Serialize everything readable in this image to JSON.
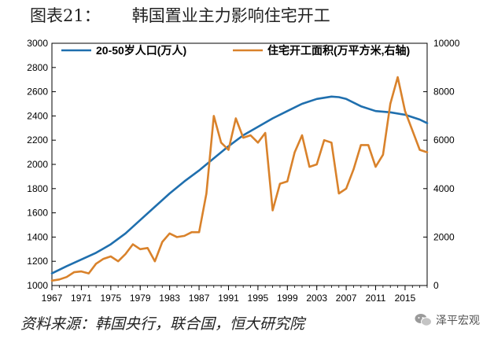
{
  "header": {
    "title": "图表21：      韩国置业主力影响住宅开工"
  },
  "footer": {
    "source": "资料来源：韩国央行，联合国，恒大研究院",
    "watermark": "泽平宏观",
    "watermark_icon": "wechat-icon"
  },
  "colors": {
    "population": "#1f6fae",
    "construction": "#d9822b",
    "background": "#ffffff"
  },
  "chart_data": {
    "type": "line",
    "title": "",
    "xlabel": "",
    "ylabel": "",
    "xlim": [
      1967,
      2018
    ],
    "ylim": [
      1000,
      3000
    ],
    "y2lim": [
      0,
      10000
    ],
    "x_ticks": [
      1967,
      1971,
      1975,
      1979,
      1983,
      1987,
      1991,
      1995,
      1999,
      2003,
      2007,
      2011,
      2015
    ],
    "y_ticks": [
      1000,
      1200,
      1400,
      1600,
      1800,
      2000,
      2200,
      2400,
      2600,
      2800,
      3000
    ],
    "y2_ticks": [
      0,
      2000,
      4000,
      6000,
      8000,
      10000
    ],
    "legend_position": "top",
    "grid": false,
    "series": [
      {
        "name": "20-50岁人口(万人)",
        "axis": "left",
        "x": [
          1967,
          1969,
          1971,
          1973,
          1975,
          1977,
          1979,
          1981,
          1983,
          1985,
          1987,
          1989,
          1991,
          1993,
          1995,
          1997,
          1999,
          2001,
          2003,
          2005,
          2006,
          2007,
          2009,
          2011,
          2013,
          2015,
          2017,
          2018
        ],
        "y": [
          1100,
          1160,
          1215,
          1270,
          1340,
          1430,
          1540,
          1650,
          1760,
          1860,
          1950,
          2050,
          2150,
          2240,
          2310,
          2380,
          2440,
          2500,
          2540,
          2560,
          2555,
          2540,
          2480,
          2440,
          2430,
          2410,
          2370,
          2340
        ]
      },
      {
        "name": "住宅开工面积(万平方米,右轴)",
        "axis": "right",
        "x": [
          1967,
          1968,
          1969,
          1970,
          1971,
          1972,
          1973,
          1974,
          1975,
          1976,
          1977,
          1978,
          1979,
          1980,
          1981,
          1982,
          1983,
          1984,
          1985,
          1986,
          1987,
          1988,
          1989,
          1990,
          1991,
          1992,
          1993,
          1994,
          1995,
          1996,
          1997,
          1998,
          1999,
          2000,
          2001,
          2002,
          2003,
          2004,
          2005,
          2006,
          2007,
          2008,
          2009,
          2010,
          2011,
          2012,
          2013,
          2014,
          2015,
          2016,
          2017,
          2018
        ],
        "y": [
          200,
          250,
          350,
          550,
          580,
          500,
          900,
          1100,
          1200,
          1000,
          1300,
          1700,
          1500,
          1550,
          1000,
          1800,
          2150,
          2000,
          2050,
          2200,
          2200,
          3800,
          7000,
          5900,
          5600,
          6900,
          6100,
          6200,
          5900,
          6300,
          3100,
          4200,
          4300,
          5500,
          6200,
          4900,
          5000,
          6000,
          5900,
          3800,
          4000,
          4800,
          5800,
          5800,
          4900,
          5400,
          7500,
          8600,
          7200,
          6400,
          5600,
          5500
        ]
      }
    ]
  }
}
